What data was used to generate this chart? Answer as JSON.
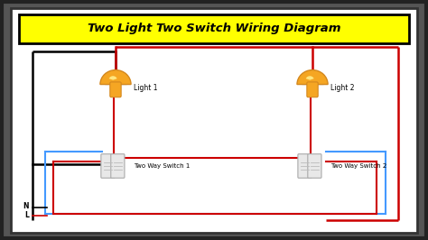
{
  "title": "Two Light Two Switch Wiring Diagram",
  "title_bg": "#FFFF00",
  "title_color": "#000000",
  "bg_color": "#FFFFFF",
  "border_color": "#000000",
  "outer_bg": "#555555",
  "light1_label": "Light 1",
  "light2_label": "Light 2",
  "switch1_label": "Two Way Switch 1",
  "switch2_label": "Two Way Switch 2",
  "neutral_label": "N",
  "live_label": "L",
  "wire_black": "#000000",
  "wire_red": "#CC0000",
  "wire_blue": "#4499FF",
  "lw_main": 1.8,
  "lw_wire": 1.5,
  "figw": 4.74,
  "figh": 2.66,
  "dpi": 100
}
